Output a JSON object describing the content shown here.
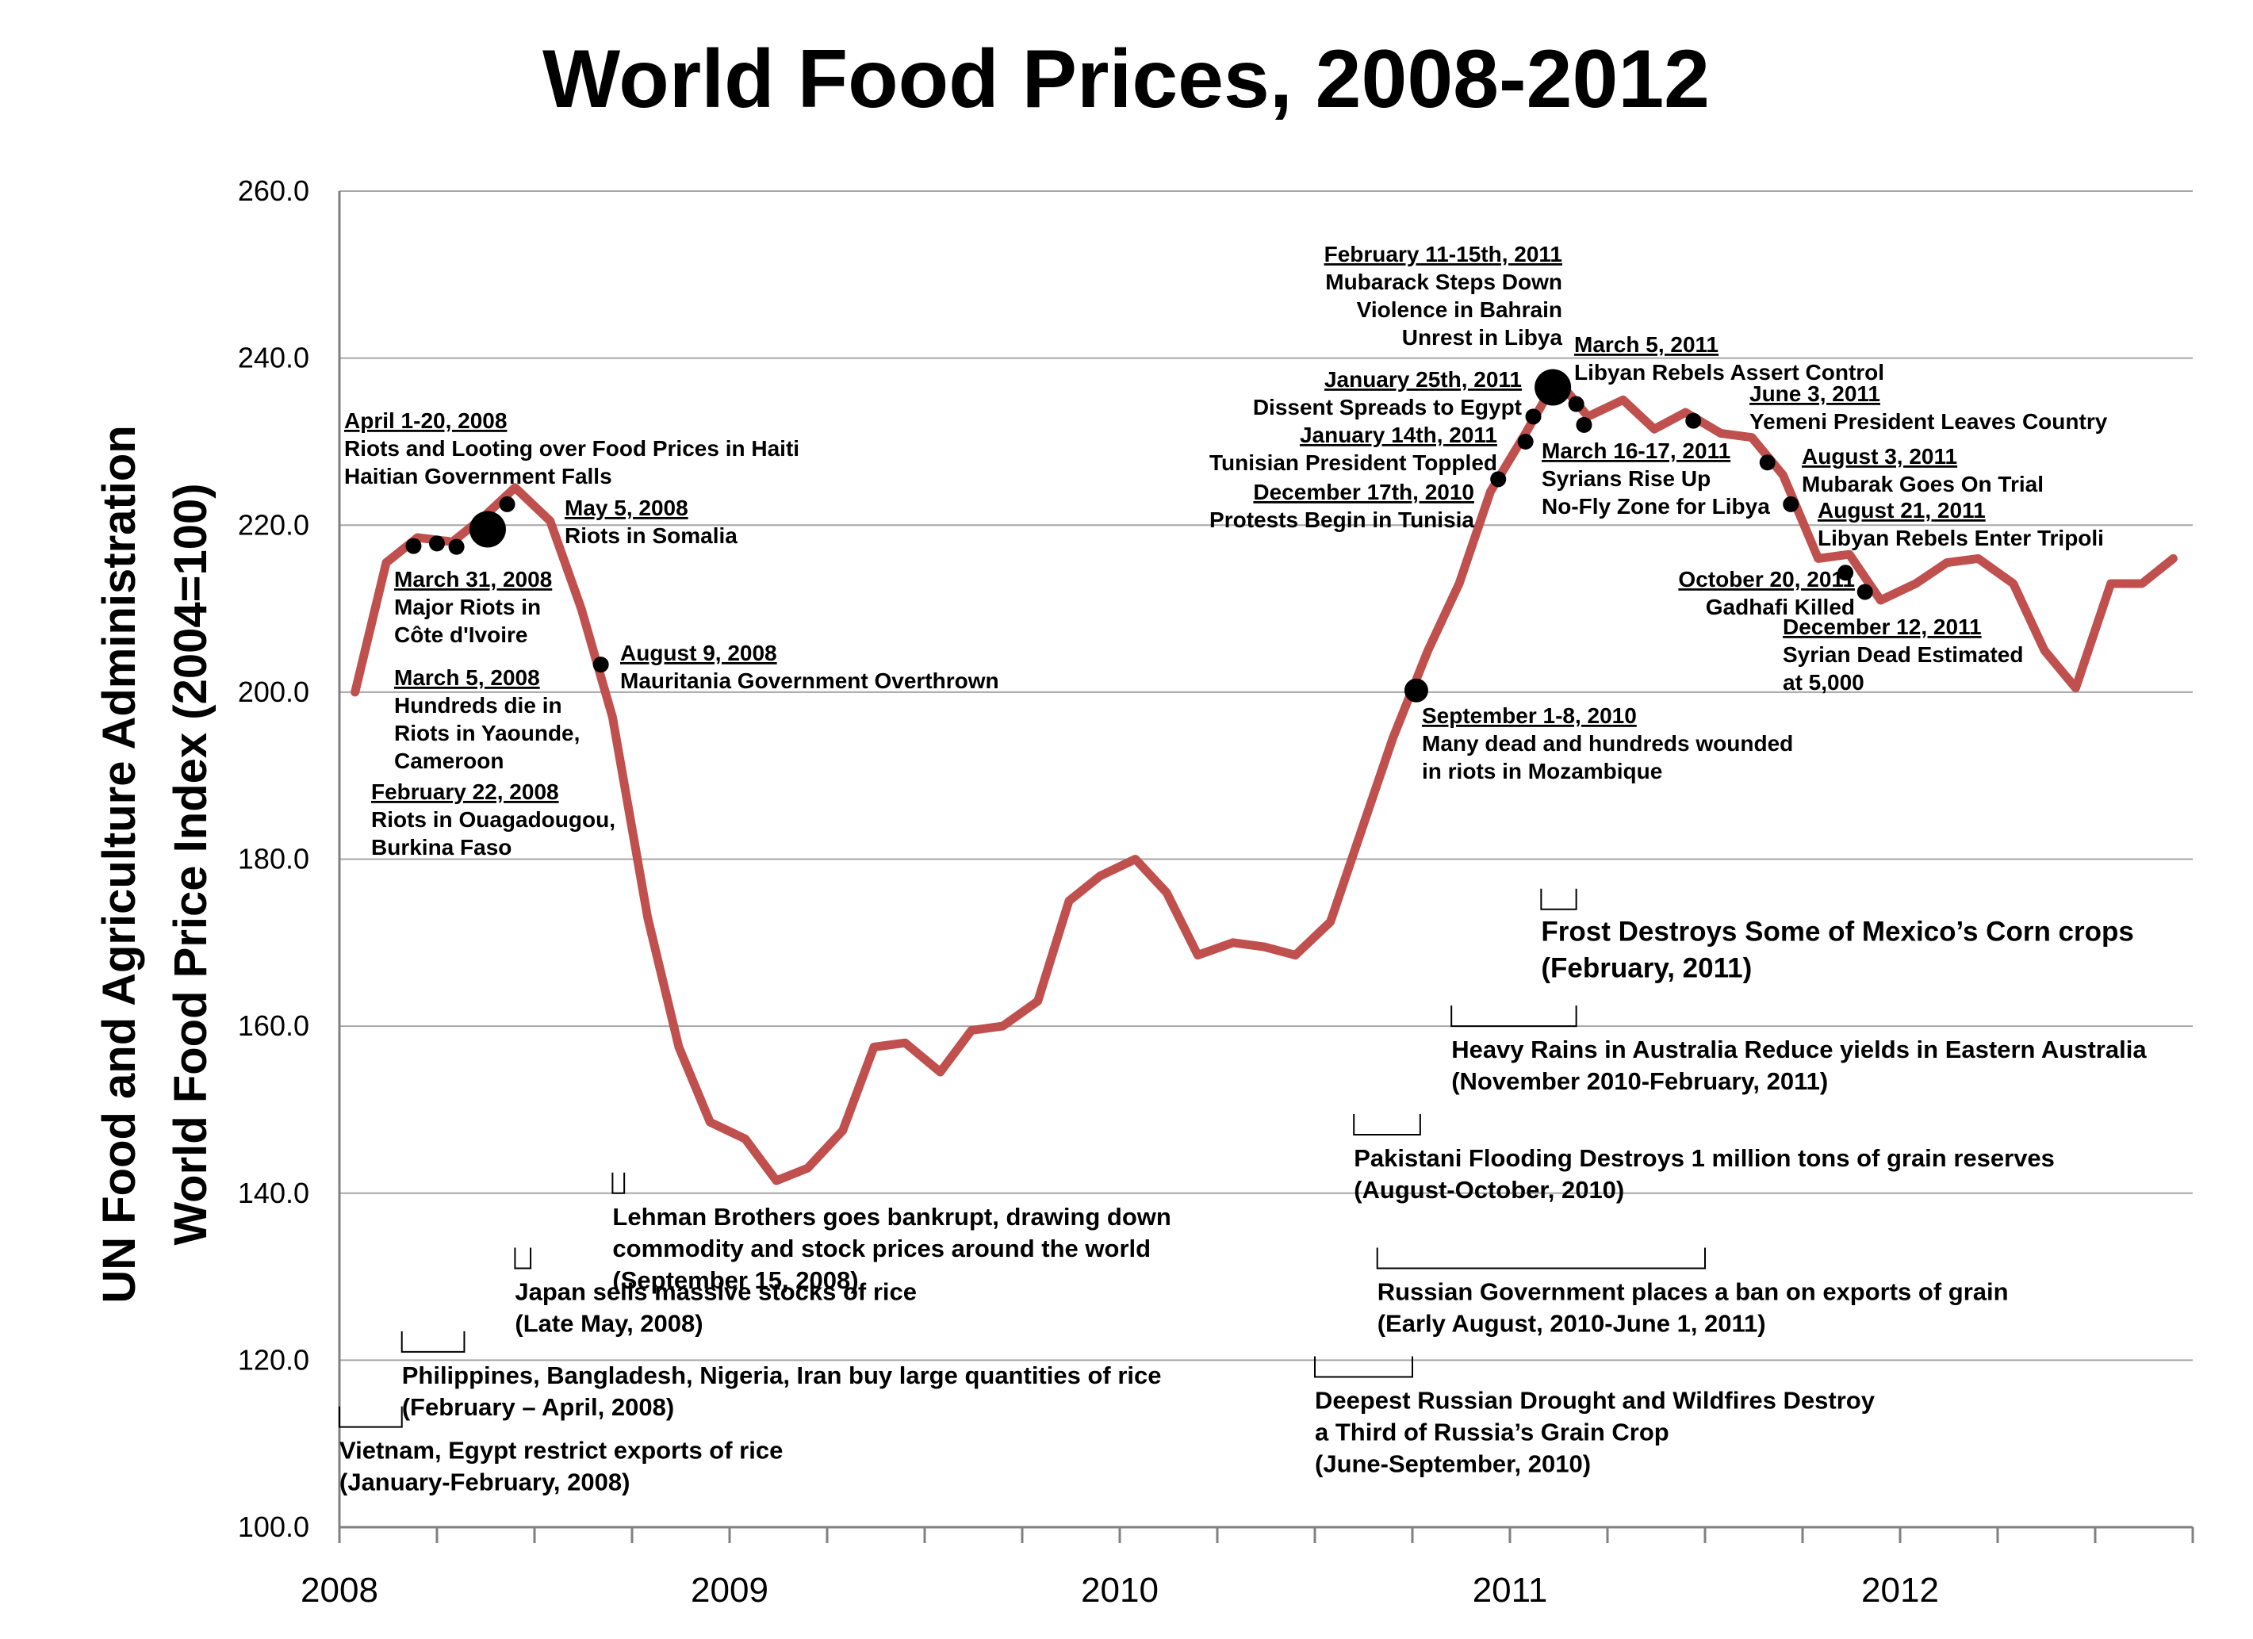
{
  "chart_data": {
    "type": "line",
    "title": "World Food Prices, 2008-2012",
    "ylabel": [
      "UN Food and Agriculture Administration",
      "World Food Price Index (2004=100)"
    ],
    "xlabel": "",
    "ylim": [
      100,
      260
    ],
    "yticks": [
      "100.0",
      "120.0",
      "140.0",
      "160.0",
      "180.0",
      "200.0",
      "220.0",
      "240.0",
      "260.0"
    ],
    "xticks": [
      {
        "label": "2008",
        "x": 2008.0
      },
      {
        "label": "2009",
        "x": 2009.0
      },
      {
        "label": "2010",
        "x": 2010.0
      },
      {
        "label": "2011",
        "x": 2011.0
      },
      {
        "label": "2012",
        "x": 2012.0
      }
    ],
    "grid": "horizontal",
    "line_color": "#c0504d",
    "series": [
      {
        "x": [
          2008.04,
          2008.12,
          2008.2,
          2008.29,
          2008.37,
          2008.45,
          2008.54,
          2008.62,
          2008.7,
          2008.79,
          2008.87,
          2008.95,
          2009.04,
          2009.12,
          2009.2,
          2009.29,
          2009.37,
          2009.45,
          2009.54,
          2009.62,
          2009.7,
          2009.79,
          2009.87,
          2009.95,
          2010.04,
          2010.12,
          2010.2,
          2010.29,
          2010.37,
          2010.45,
          2010.54,
          2010.62,
          2010.7,
          2010.79,
          2010.87,
          2010.95,
          2011.04,
          2011.12,
          2011.2,
          2011.29,
          2011.37,
          2011.45,
          2011.54,
          2011.62,
          2011.7,
          2011.79,
          2011.87,
          2011.95,
          2012.04,
          2012.12,
          2012.2,
          2012.29,
          2012.37,
          2012.45,
          2012.54,
          2012.62,
          2012.7
        ],
        "y": [
          200,
          215.5,
          218.5,
          218,
          221,
          224.5,
          220.5,
          210,
          197,
          173,
          157.5,
          148.5,
          146.5,
          141.5,
          143,
          147.5,
          157.5,
          158,
          154.5,
          159.5,
          160,
          163,
          175,
          178,
          180,
          176,
          168.5,
          170,
          169.5,
          168.5,
          172.5,
          183.5,
          194.5,
          205,
          213,
          224,
          231,
          237.5,
          233,
          235,
          231.5,
          233.5,
          231,
          230.5,
          226,
          216,
          216.5,
          211,
          213,
          215.5,
          216,
          213,
          205,
          200.5,
          213,
          213,
          216
        ]
      }
    ],
    "markers": [
      {
        "x": 2008.19,
        "y": 217.5,
        "size": "small"
      },
      {
        "x": 2008.25,
        "y": 217.8,
        "size": "small"
      },
      {
        "x": 2008.3,
        "y": 217.4,
        "size": "small"
      },
      {
        "x": 2008.38,
        "y": 219.5,
        "size": "large"
      },
      {
        "x": 2008.43,
        "y": 222.5,
        "size": "small"
      },
      {
        "x": 2008.67,
        "y": 203.3,
        "size": "small"
      },
      {
        "x": 2010.76,
        "y": 200.2,
        "size": "medium"
      },
      {
        "x": 2010.97,
        "y": 225.5,
        "size": "small"
      },
      {
        "x": 2011.04,
        "y": 230,
        "size": "small"
      },
      {
        "x": 2011.06,
        "y": 233,
        "size": "small"
      },
      {
        "x": 2011.11,
        "y": 236.5,
        "size": "large"
      },
      {
        "x": 2011.17,
        "y": 234.5,
        "size": "small"
      },
      {
        "x": 2011.19,
        "y": 232,
        "size": "small"
      },
      {
        "x": 2011.47,
        "y": 232.5,
        "size": "small"
      },
      {
        "x": 2011.66,
        "y": 227.5,
        "size": "small"
      },
      {
        "x": 2011.72,
        "y": 222.5,
        "size": "small"
      },
      {
        "x": 2011.86,
        "y": 214.3,
        "size": "small"
      },
      {
        "x": 2011.91,
        "y": 212,
        "size": "small"
      }
    ],
    "annotations": [
      {
        "head": "April 1-20, 2008",
        "lines": [
          "Riots and Looting over Food Prices in Haiti",
          "Haitian Government Falls"
        ]
      },
      {
        "head": "May 5, 2008",
        "lines": [
          "Riots in Somalia"
        ]
      },
      {
        "head": "March 31, 2008",
        "lines": [
          "Major Riots in",
          "Côte d'Ivoire"
        ]
      },
      {
        "head": "March 5, 2008",
        "lines": [
          "Hundreds die in",
          "Riots in Yaounde,",
          "Cameroon"
        ]
      },
      {
        "head": "February 22, 2008",
        "lines": [
          "Riots in Ouagadougou,",
          "Burkina Faso"
        ]
      },
      {
        "head": "August 9, 2008",
        "lines": [
          "Mauritania Government Overthrown"
        ]
      },
      {
        "head": "February 11-15th, 2011",
        "lines": [
          "Mubarack Steps Down",
          "Violence in Bahrain",
          "Unrest in Libya"
        ]
      },
      {
        "head": "January 25th, 2011",
        "lines": [
          "Dissent Spreads to Egypt"
        ]
      },
      {
        "head": "January 14th, 2011",
        "lines": [
          "Tunisian President Toppled"
        ]
      },
      {
        "head": "December 17th, 2010",
        "lines": [
          "Protests Begin in Tunisia"
        ]
      },
      {
        "head": "March 5, 2011",
        "lines": [
          "Libyan Rebels Assert Control"
        ]
      },
      {
        "head": "June 3, 2011",
        "lines": [
          "Yemeni President Leaves Country"
        ]
      },
      {
        "head": "March 16-17, 2011",
        "lines": [
          "Syrians Rise Up",
          "No-Fly Zone for Libya"
        ]
      },
      {
        "head": "August 3, 2011",
        "lines": [
          "Mubarak Goes On Trial"
        ]
      },
      {
        "head": "August 21, 2011",
        "lines": [
          "Libyan Rebels Enter Tripoli"
        ]
      },
      {
        "head": "October 20, 2011",
        "lines": [
          "Gadhafi Killed"
        ]
      },
      {
        "head": "December 12, 2011",
        "lines": [
          "Syrian Dead Estimated",
          "at 5,000"
        ]
      },
      {
        "head": "September 1-8, 2010",
        "lines": [
          "Many dead and hundreds wounded",
          "in riots in Mozambique"
        ]
      }
    ],
    "events": [
      {
        "from": 2008.0,
        "to": 2008.16,
        "ylevel": 112,
        "lines": [
          "Vietnam, Egypt restrict exports of rice",
          "(January-February, 2008)"
        ]
      },
      {
        "from": 2008.16,
        "to": 2008.32,
        "ylevel": 121,
        "lines": [
          "Philippines, Bangladesh, Nigeria, Iran buy large quantities of rice",
          "(February – April, 2008)"
        ]
      },
      {
        "from": 2008.45,
        "to": 2008.49,
        "ylevel": 131,
        "lines": [
          "Japan sells massive stocks of rice",
          "(Late May, 2008)"
        ]
      },
      {
        "from": 2008.7,
        "to": 2008.73,
        "ylevel": 140,
        "lines": [
          "Lehman Brothers goes bankrupt, drawing down",
          "commodity and stock prices around the world",
          "(September 15, 2008)"
        ]
      },
      {
        "from": 2010.5,
        "to": 2010.75,
        "ylevel": 118,
        "lines": [
          "Deepest Russian Drought and Wildfires Destroy",
          "a Third of Russia’s Grain Crop",
          "(June-September, 2010)"
        ]
      },
      {
        "from": 2010.66,
        "to": 2011.5,
        "ylevel": 131,
        "lines": [
          "Russian Government places a ban on exports of grain",
          "(Early August, 2010-June 1, 2011)"
        ]
      },
      {
        "from": 2010.6,
        "to": 2010.77,
        "ylevel": 147,
        "lines": [
          "Pakistani Flooding Destroys 1 million tons of grain reserves",
          "(August-October, 2010)"
        ]
      },
      {
        "from": 2010.85,
        "to": 2011.17,
        "ylevel": 160,
        "lines": [
          "Heavy Rains in Australia Reduce yields in Eastern Australia",
          "(November 2010-February, 2011)"
        ]
      },
      {
        "from": 2011.08,
        "to": 2011.17,
        "ylevel": 174,
        "lines": [
          "Frost Destroys Some of Mexico’s Corn crops",
          "(February, 2011)"
        ],
        "large": true
      }
    ]
  }
}
